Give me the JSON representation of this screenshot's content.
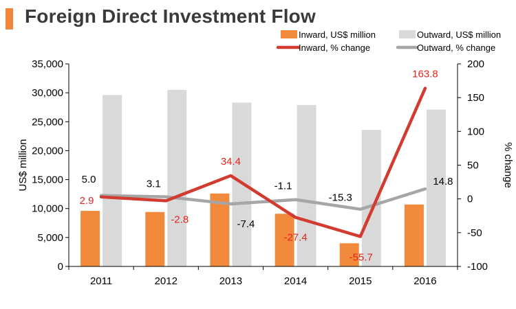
{
  "title": "Foreign Direct Investment Flow",
  "colors": {
    "accent": "#f0873a",
    "inward_bar": "#f28a3c",
    "outward_bar": "#d9d9d9",
    "inward_line": "#d23b2f",
    "outward_line": "#a6a6a6",
    "text": "#000000",
    "inward_label": "#e0261d"
  },
  "chart_data": {
    "type": "bar",
    "title": "Foreign Direct Investment Flow",
    "categories": [
      "2011",
      "2012",
      "2013",
      "2014",
      "2015",
      "2016"
    ],
    "y_left": {
      "label": "US$ million",
      "ylim": [
        0,
        35000
      ],
      "ticks": [
        "0",
        "5,000",
        "10,000",
        "15,000",
        "20,000",
        "25,000",
        "30,000",
        "35,000"
      ]
    },
    "y_right": {
      "label": "% change",
      "ylim": [
        -100,
        200
      ],
      "ticks": [
        "-100",
        "-50",
        "0",
        "50",
        "100",
        "150",
        "200"
      ]
    },
    "grid": false,
    "legend_position": "top-right",
    "series": [
      {
        "name": "Inward, US$ million",
        "type": "bar",
        "axis": "left",
        "values": [
          9600,
          9400,
          12600,
          9100,
          4000,
          10700
        ]
      },
      {
        "name": "Outward, US$ million",
        "type": "bar",
        "axis": "left",
        "values": [
          29600,
          30500,
          28300,
          27900,
          23600,
          27100
        ]
      },
      {
        "name": "Inward, % change",
        "type": "line",
        "axis": "right",
        "values": [
          2.9,
          -2.8,
          34.4,
          -27.4,
          -55.7,
          163.8
        ],
        "labels": [
          "2.9",
          "-2.8",
          "34.4",
          "-27.4",
          "-55.7",
          "163.8"
        ]
      },
      {
        "name": "Outward, % change",
        "type": "line",
        "axis": "right",
        "values": [
          5.0,
          3.1,
          -7.4,
          -1.1,
          -15.3,
          14.8
        ],
        "labels": [
          "5.0",
          "3.1",
          "-7.4",
          "-1.1",
          "-15.3",
          "14.8"
        ]
      }
    ]
  }
}
